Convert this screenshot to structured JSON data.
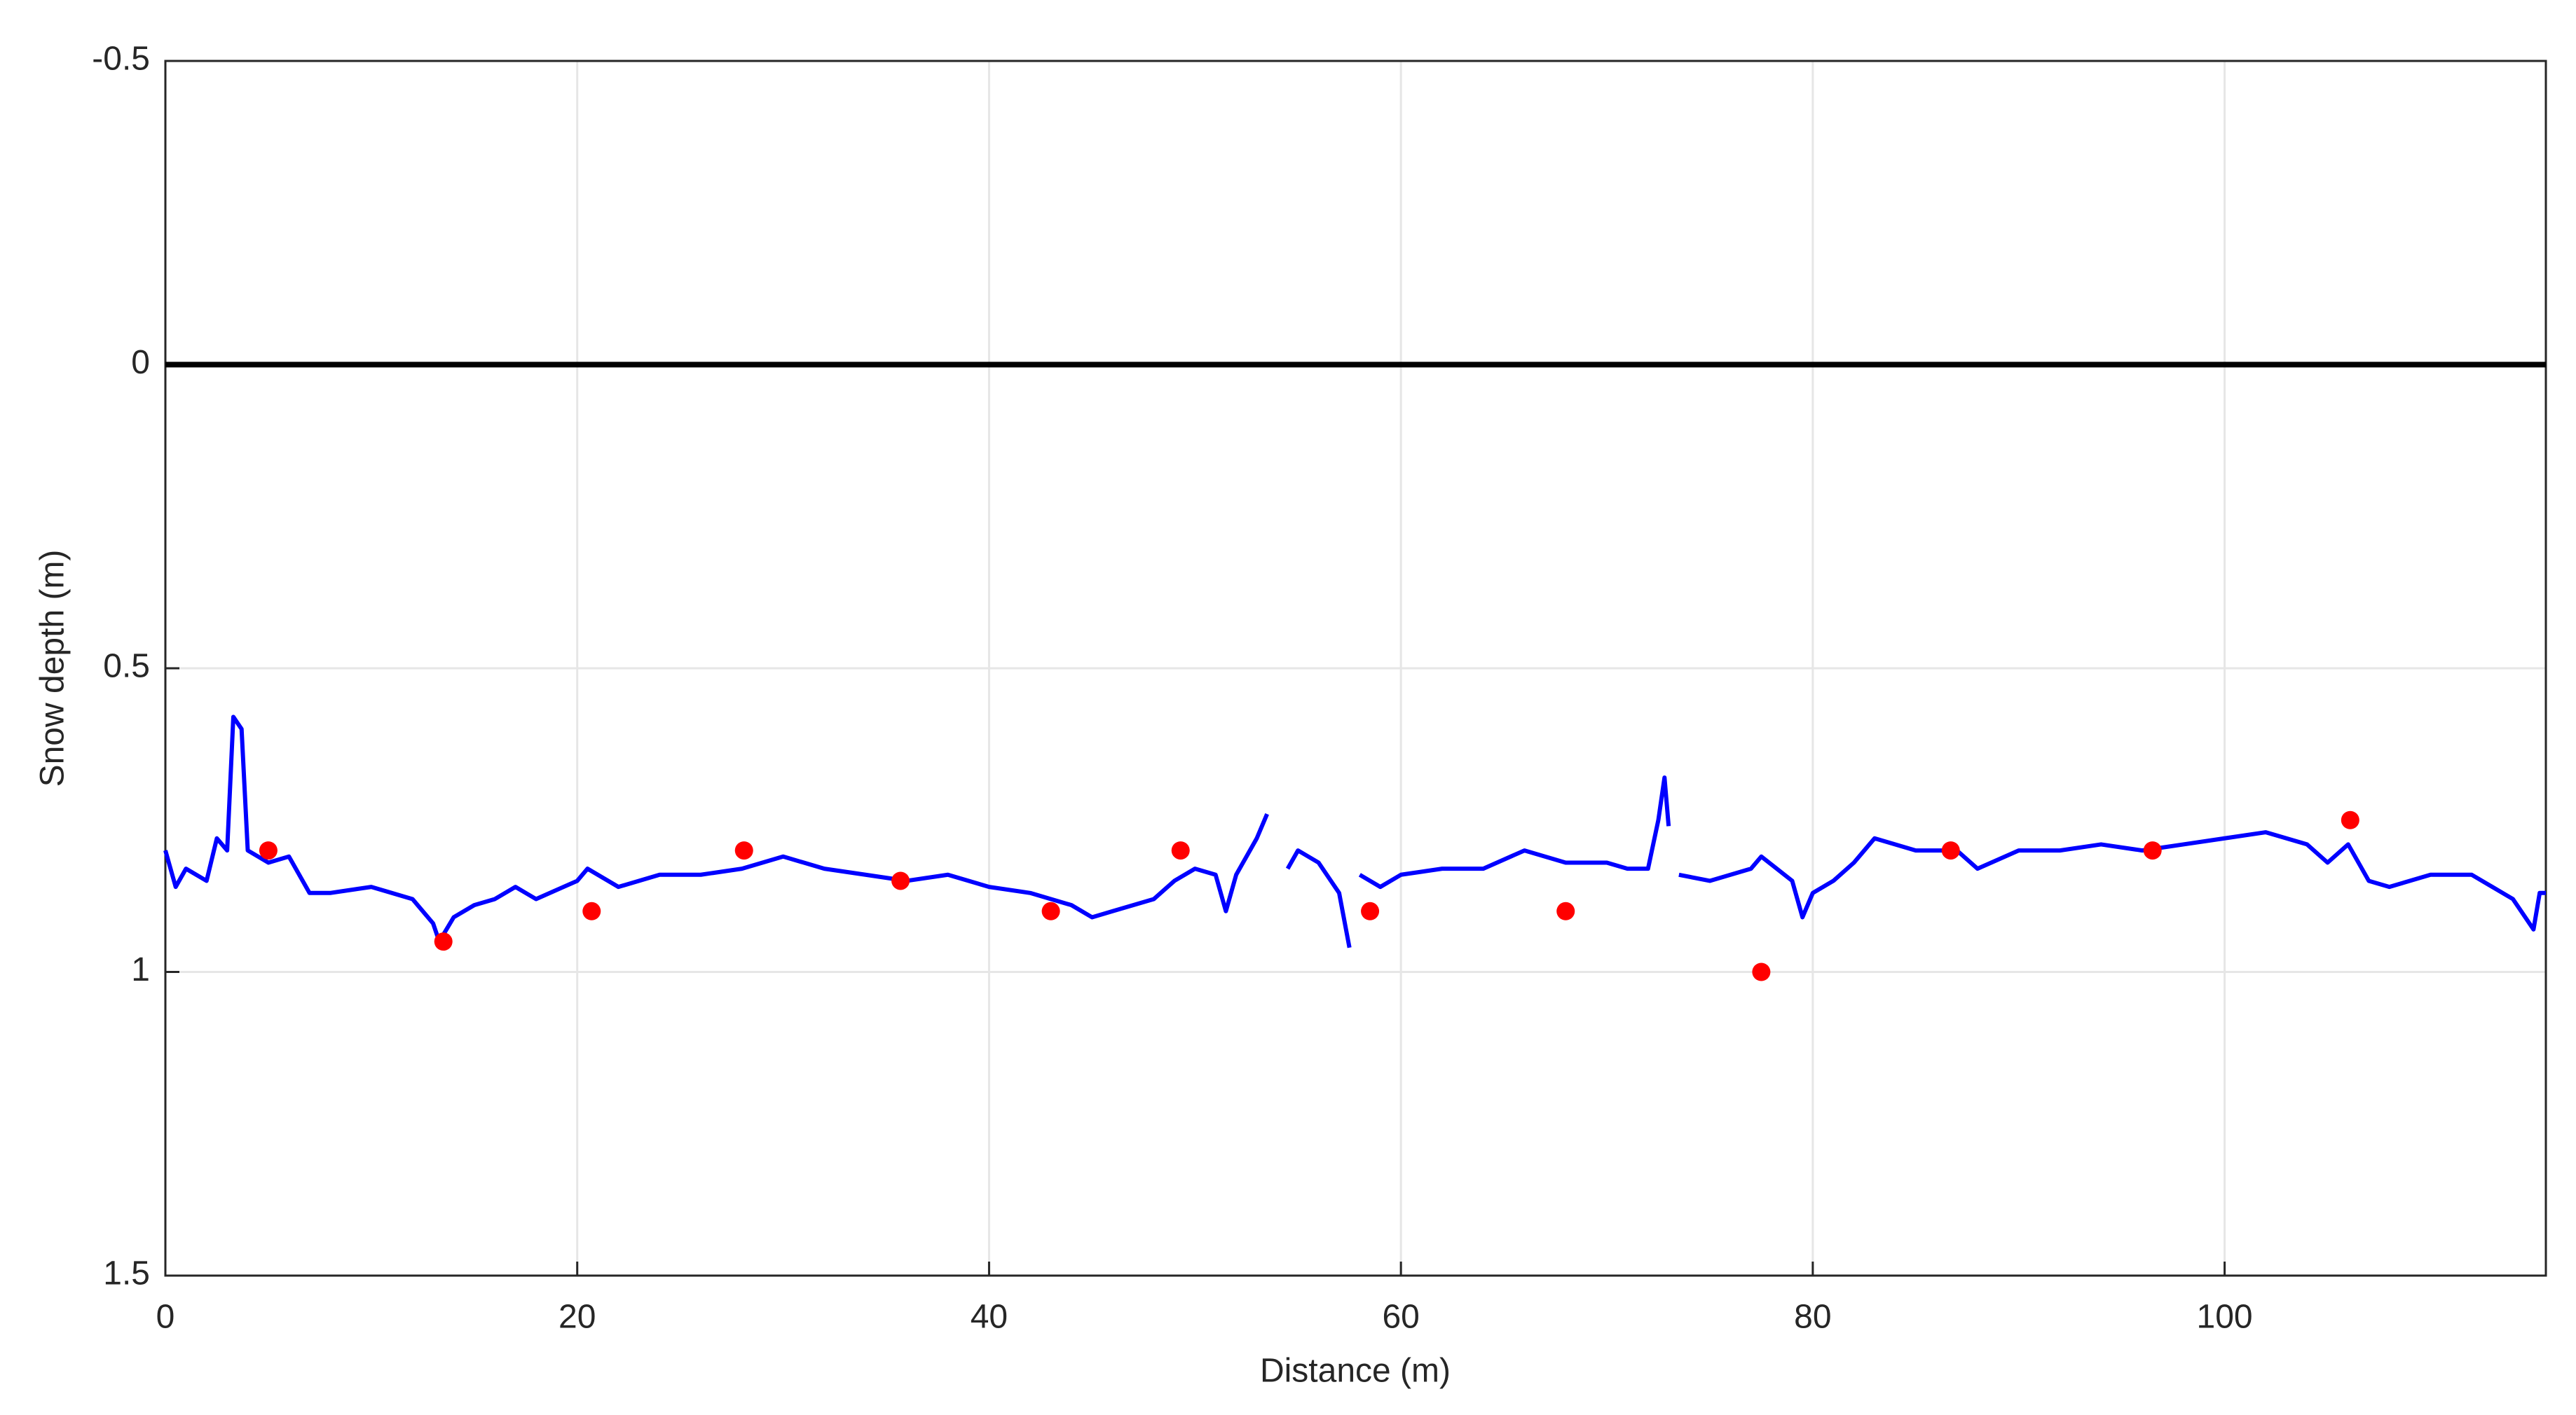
{
  "chart_data": {
    "type": "line",
    "xlabel": "Distance (m)",
    "ylabel": "Snow depth (m)",
    "xlim": [
      0,
      115.6
    ],
    "ylim": [
      -0.5,
      1.5
    ],
    "y_reversed": true,
    "xticks": [
      0,
      20,
      40,
      60,
      80,
      100
    ],
    "yticks": [
      -0.5,
      0,
      0.5,
      1,
      1.5
    ],
    "grid": true,
    "hlines": [
      {
        "y": 0,
        "color": "#000000"
      }
    ],
    "series": [
      {
        "type": "line",
        "color": "#0000ff",
        "x": [
          0,
          0.5,
          1,
          2,
          2.5,
          3,
          3.3,
          3.7,
          4,
          5,
          6,
          7,
          8,
          10,
          12,
          13,
          13.3,
          14,
          15,
          16,
          17,
          18,
          20,
          20.5,
          22,
          24,
          26,
          28,
          30,
          32,
          34,
          36,
          38,
          40,
          42,
          44,
          45,
          46,
          48,
          49,
          50,
          51,
          51.5,
          52,
          53,
          53.5,
          54,
          54.5,
          55,
          56,
          57,
          57.5,
          57.8,
          58,
          59,
          60,
          62,
          64,
          66,
          68,
          70,
          71,
          72,
          72.5,
          72.8,
          73,
          73.2,
          73.5,
          75,
          77,
          77.5,
          79,
          79.5,
          80,
          81,
          82,
          83,
          85,
          87,
          88,
          90,
          92,
          94,
          96,
          98,
          100,
          102,
          104,
          105,
          106,
          107,
          108,
          110,
          112,
          114,
          115,
          115.3,
          115.6
        ],
        "values": [
          0.8,
          0.86,
          0.83,
          0.85,
          0.78,
          0.8,
          0.58,
          0.6,
          0.8,
          0.82,
          0.81,
          0.87,
          0.87,
          0.86,
          0.88,
          0.92,
          0.95,
          0.91,
          0.89,
          0.88,
          0.86,
          0.88,
          0.85,
          0.83,
          0.86,
          0.84,
          0.84,
          0.83,
          0.81,
          0.83,
          0.84,
          0.85,
          0.84,
          0.86,
          0.87,
          0.89,
          0.91,
          0.9,
          0.88,
          0.85,
          0.83,
          0.84,
          0.9,
          0.84,
          0.78,
          0.74,
          null,
          0.83,
          0.8,
          0.82,
          0.87,
          0.96,
          null,
          0.84,
          0.86,
          0.84,
          0.83,
          0.83,
          0.8,
          0.82,
          0.82,
          0.83,
          0.83,
          0.75,
          0.68,
          0.76,
          null,
          0.84,
          0.85,
          0.83,
          0.81,
          0.85,
          0.91,
          0.87,
          0.85,
          0.82,
          0.78,
          0.8,
          0.8,
          0.83,
          0.8,
          0.8,
          0.79,
          0.8,
          0.79,
          0.78,
          0.77,
          0.79,
          0.82,
          0.79,
          0.85,
          0.86,
          0.84,
          0.84,
          0.88,
          0.93,
          0.87,
          0.87
        ]
      },
      {
        "type": "scatter",
        "color": "#ff0000",
        "x": [
          5.0,
          13.5,
          20.7,
          28.1,
          35.7,
          43.0,
          49.3,
          58.5,
          68.0,
          77.5,
          86.7,
          96.5,
          106.1
        ],
        "values": [
          0.8,
          0.95,
          0.9,
          0.8,
          0.85,
          0.9,
          0.8,
          0.9,
          0.9,
          1.0,
          0.8,
          0.8,
          0.75
        ]
      }
    ]
  }
}
